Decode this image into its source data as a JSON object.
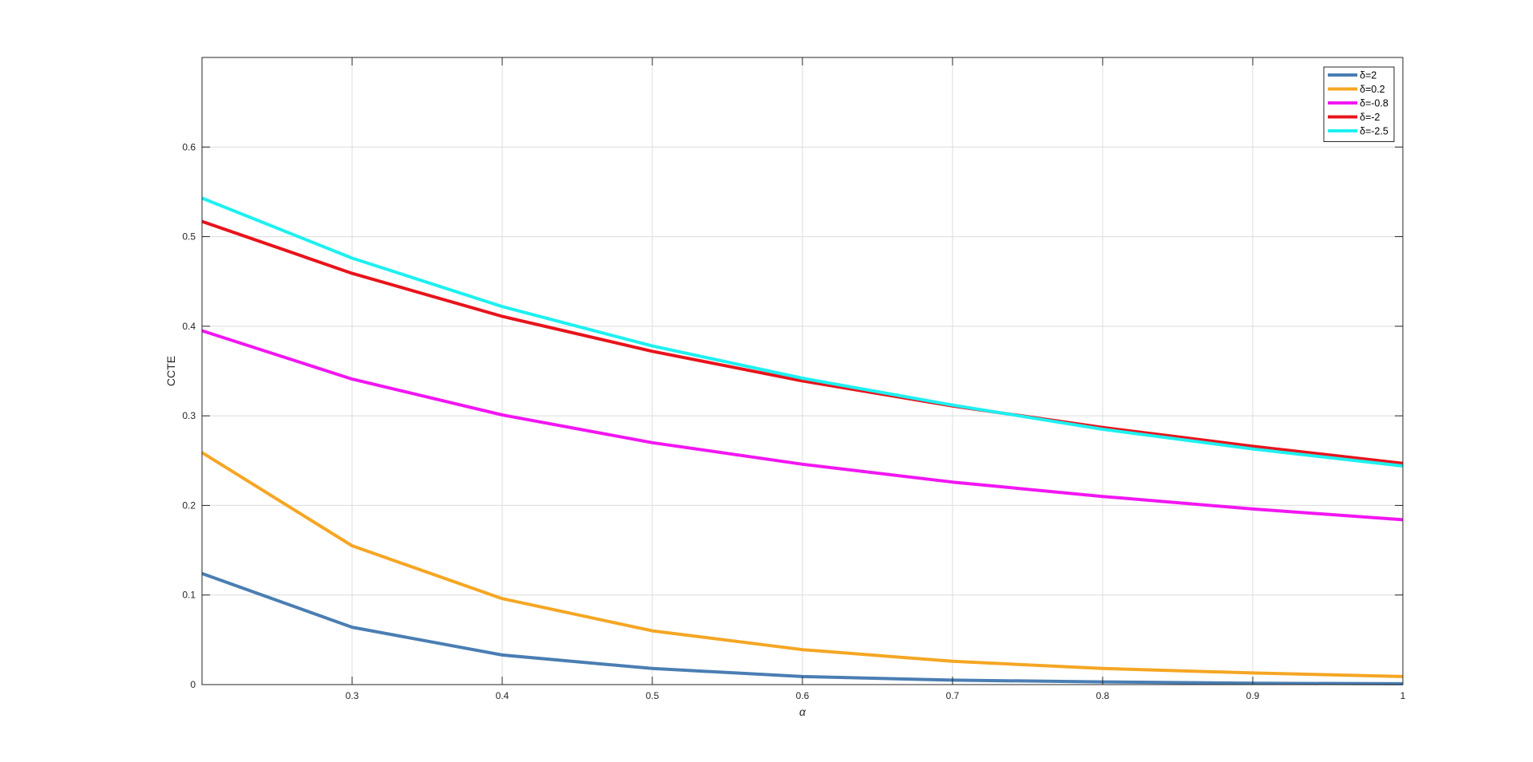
{
  "chart_data": {
    "type": "line",
    "title": "",
    "xlabel": "α",
    "ylabel": "CCTE",
    "xlim": [
      0.2,
      1.0
    ],
    "ylim": [
      0,
      0.7
    ],
    "x": [
      0.2,
      0.3,
      0.4,
      0.5,
      0.6,
      0.7,
      0.8,
      0.9,
      1.0
    ],
    "xticks": [
      "0.3",
      "0.4",
      "0.5",
      "0.6",
      "0.7",
      "0.8",
      "0.9",
      "1"
    ],
    "yticks": [
      "0",
      "0.1",
      "0.2",
      "0.3",
      "0.4",
      "0.5",
      "0.6"
    ],
    "grid": true,
    "legend_position": "top-right",
    "series": [
      {
        "name": "δ=2",
        "color": "#4a7eb3",
        "values": [
          0.124,
          0.064,
          0.033,
          0.018,
          0.009,
          0.005,
          0.003,
          0.0015,
          0.001
        ]
      },
      {
        "name": "δ=0.2",
        "color": "#f5a623",
        "values": [
          0.259,
          0.155,
          0.096,
          0.06,
          0.039,
          0.026,
          0.018,
          0.013,
          0.009
        ]
      },
      {
        "name": "δ=-0.8",
        "color": "#f216f2",
        "values": [
          0.395,
          0.341,
          0.301,
          0.27,
          0.246,
          0.226,
          0.21,
          0.196,
          0.184
        ]
      },
      {
        "name": "δ=-2",
        "color": "#e8141c",
        "values": [
          0.517,
          0.459,
          0.411,
          0.372,
          0.339,
          0.311,
          0.287,
          0.266,
          0.247
        ]
      },
      {
        "name": "δ=-2.5",
        "color": "#1ef0f0",
        "values": [
          0.543,
          0.476,
          0.422,
          0.378,
          0.342,
          0.312,
          0.285,
          0.263,
          0.244
        ]
      }
    ]
  }
}
